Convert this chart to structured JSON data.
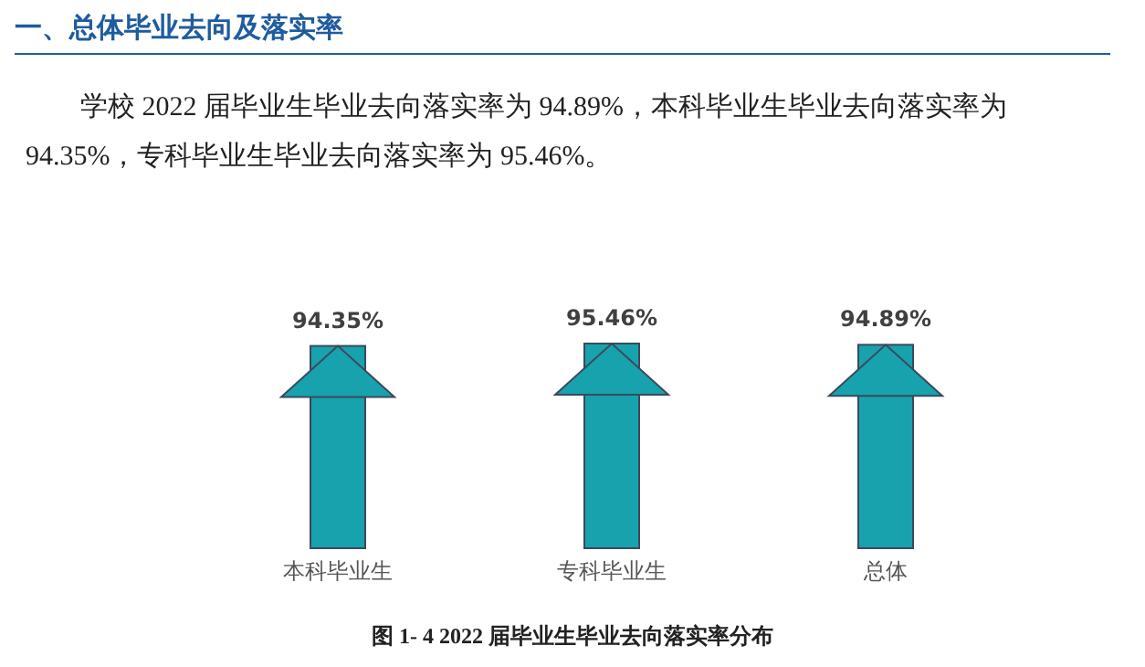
{
  "chart_data": {
    "type": "bar",
    "title": "一、总体毕业去向及落实率",
    "subtitle": "学校 2022 届毕业生毕业去向落实率为 94.89%，本科毕业生毕业去向落实率为 94.35%，专科毕业生毕业去向落实率为 95.46%。",
    "categories": [
      "本科毕业生",
      "专科毕业生",
      "总体"
    ],
    "values": [
      94.35,
      95.46,
      94.89
    ],
    "value_labels": [
      "94.35%",
      "95.46%",
      "94.89%"
    ],
    "color": "#17a2ad",
    "annotations": [
      "图 1- 4  2022 届毕业生毕业去向落实率分布"
    ]
  }
}
